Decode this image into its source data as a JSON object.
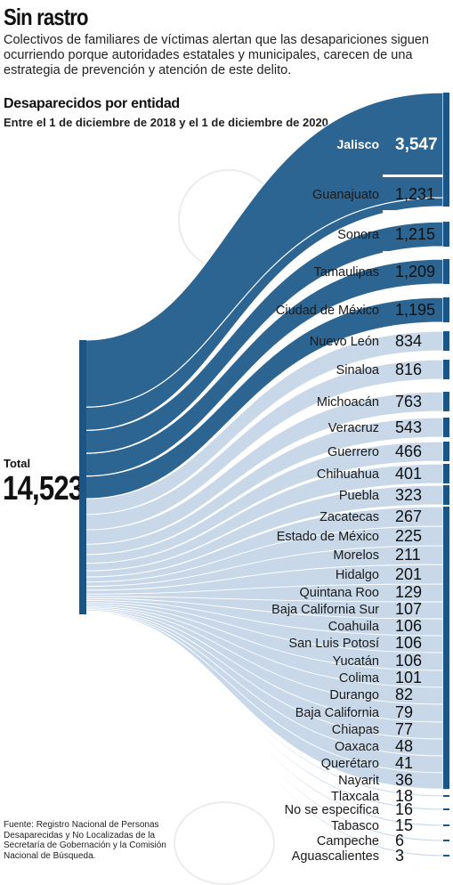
{
  "header": {
    "title": "Sin rastro",
    "description": "Colectivos de familiares de víctimas alertan que las desapariciones siguen ocurriendo porque autoridades estatales y municipales, carecen de una estrategia de prevención y atención de este delito.",
    "subtitle": "Desaparecidos por entidad",
    "date_range": "Entre el 1 de diciembre de 2018 y el 1 de diciembre de 2020"
  },
  "total": {
    "label": "Total",
    "value": "14,523"
  },
  "source": "Fuente: Registro Nacional de Personas Desaparecidas y No Localizadas de la Secretaría de Gobernación y la Comisión Nacional de Búsqueda.",
  "colors": {
    "dark_blue": "#2c6592",
    "light_blue": "#c8d8e9",
    "bar": "#1b5586",
    "highlight_text": "#ffffff"
  },
  "chart_data": {
    "type": "sankey",
    "source_node": "Total",
    "total": 14523,
    "categories": [
      "Jalisco",
      "Guanajuato",
      "Sonora",
      "Tamaulipas",
      "Ciudad de México",
      "Nuevo León",
      "Sinaloa",
      "Michoacán",
      "Veracruz",
      "Guerrero",
      "Chihuahua",
      "Puebla",
      "Zacatecas",
      "Estado de México",
      "Morelos",
      "Hidalgo",
      "Quintana Roo",
      "Baja California Sur",
      "Coahuila",
      "San Luis Potosí",
      "Yucatán",
      "Colima",
      "Durango",
      "Baja California",
      "Chiapas",
      "Oaxaca",
      "Querétaro",
      "Nayarit",
      "Tlaxcala",
      "No se especifica",
      "Tabasco",
      "Campeche",
      "Aguascalientes"
    ],
    "values": [
      3547,
      1231,
      1215,
      1209,
      1195,
      834,
      816,
      763,
      543,
      466,
      401,
      323,
      267,
      225,
      211,
      201,
      129,
      107,
      106,
      106,
      106,
      101,
      82,
      79,
      77,
      48,
      41,
      36,
      18,
      16,
      15,
      6,
      3
    ],
    "value_labels": [
      "3,547",
      "1,231",
      "1,215",
      "1,209",
      "1,195",
      "834",
      "816",
      "763",
      "543",
      "466",
      "401",
      "323",
      "267",
      "225",
      "211",
      "201",
      "129",
      "107",
      "106",
      "106",
      "106",
      "101",
      "82",
      "79",
      "77",
      "48",
      "41",
      "36",
      "18",
      "16",
      "15",
      "6",
      "3"
    ],
    "highlight": [
      "Jalisco",
      "Guanajuato",
      "Sonora",
      "Tamaulipas",
      "Ciudad de México"
    ]
  }
}
